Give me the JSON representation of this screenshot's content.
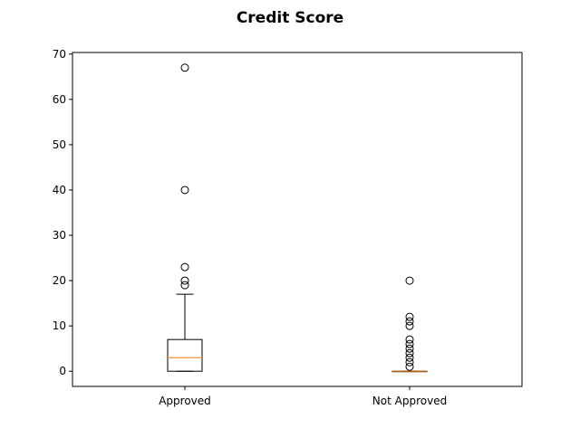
{
  "chart_data": {
    "type": "box",
    "title": "Credit Score",
    "xlabel": "",
    "ylabel": "",
    "categories": [
      "Approved",
      "Not Approved"
    ],
    "ylim": [
      -3.35,
      70.35
    ],
    "y_ticks": [
      0,
      10,
      20,
      30,
      40,
      50,
      60,
      70
    ],
    "grid": false,
    "boxes": [
      {
        "label": "Approved",
        "whisker_low": 0,
        "q1": 0,
        "median": 3,
        "q3": 7,
        "whisker_high": 17,
        "outliers": [
          67,
          40,
          23,
          20,
          19
        ]
      },
      {
        "label": "Not Approved",
        "whisker_low": 0,
        "q1": 0,
        "median": 0,
        "q3": 0,
        "whisker_high": 0,
        "outliers": [
          20,
          12,
          11,
          10,
          7,
          6,
          5,
          4,
          3,
          2,
          1
        ]
      }
    ],
    "colors": {
      "box": "#000000",
      "median": "#ff7f0e",
      "outlier": "#000000"
    }
  }
}
